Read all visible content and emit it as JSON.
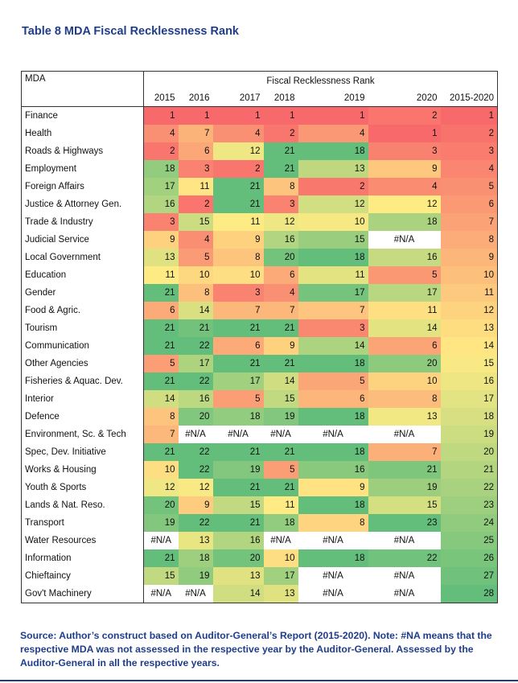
{
  "title": "Table 8 MDA Fiscal Recklessness Rank",
  "table": {
    "first_col_header": "MDA",
    "group_header": "Fiscal Recklessness Rank",
    "columns": [
      "2015",
      "2016",
      "2017",
      "2018",
      "2019",
      "2020",
      "2015-2020"
    ],
    "rows": [
      {
        "mda": "Finance",
        "values": [
          "1",
          "1",
          "1",
          "1",
          "1",
          "2",
          "1"
        ]
      },
      {
        "mda": "Health",
        "values": [
          "4",
          "7",
          "4",
          "2",
          "4",
          "1",
          "2"
        ]
      },
      {
        "mda": "Roads & Highways",
        "values": [
          "2",
          "6",
          "12",
          "21",
          "18",
          "3",
          "3"
        ]
      },
      {
        "mda": "Employment",
        "values": [
          "18",
          "3",
          "2",
          "21",
          "13",
          "9",
          "4"
        ]
      },
      {
        "mda": "Foreign Affairs",
        "values": [
          "17",
          "11",
          "21",
          "8",
          "2",
          "4",
          "5"
        ]
      },
      {
        "mda": "Justice & Attorney Gen.",
        "values": [
          "16",
          "2",
          "21",
          "3",
          "12",
          "12",
          "6"
        ]
      },
      {
        "mda": "Trade & Industry",
        "values": [
          "3",
          "15",
          "11",
          "12",
          "10",
          "18",
          "7"
        ]
      },
      {
        "mda": "Judicial Service",
        "values": [
          "9",
          "4",
          "9",
          "16",
          "15",
          "#N/A",
          "8"
        ]
      },
      {
        "mda": "Local Government",
        "values": [
          "13",
          "5",
          "8",
          "20",
          "18",
          "16",
          "9"
        ]
      },
      {
        "mda": "Education",
        "values": [
          "11",
          "10",
          "10",
          "6",
          "11",
          "5",
          "10"
        ]
      },
      {
        "mda": "Gender",
        "values": [
          "21",
          "8",
          "3",
          "4",
          "17",
          "17",
          "11"
        ]
      },
      {
        "mda": "Food & Agric.",
        "values": [
          "6",
          "14",
          "7",
          "7",
          "7",
          "11",
          "12"
        ]
      },
      {
        "mda": "Tourism",
        "values": [
          "21",
          "21",
          "21",
          "21",
          "3",
          "14",
          "13"
        ]
      },
      {
        "mda": "Communication",
        "values": [
          "21",
          "22",
          "6",
          "9",
          "14",
          "6",
          "14"
        ]
      },
      {
        "mda": "Other Agencies",
        "values": [
          "5",
          "17",
          "21",
          "21",
          "18",
          "20",
          "15"
        ]
      },
      {
        "mda": "Fisheries & Aquac. Dev.",
        "values": [
          "21",
          "22",
          "17",
          "14",
          "5",
          "10",
          "16"
        ]
      },
      {
        "mda": "Interior",
        "values": [
          "14",
          "16",
          "5",
          "15",
          "6",
          "8",
          "17"
        ]
      },
      {
        "mda": "Defence",
        "values": [
          "8",
          "20",
          "18",
          "19",
          "18",
          "13",
          "18"
        ]
      },
      {
        "mda": "Environment, Sc. & Tech",
        "values": [
          "7",
          "#N/A",
          "#N/A",
          "#N/A",
          "#N/A",
          "#N/A",
          "19"
        ]
      },
      {
        "mda": "Spec, Dev. Initiative",
        "values": [
          "21",
          "22",
          "21",
          "21",
          "18",
          "7",
          "20"
        ]
      },
      {
        "mda": "Works & Housing",
        "values": [
          "10",
          "22",
          "19",
          "5",
          "16",
          "21",
          "21"
        ]
      },
      {
        "mda": "Youth & Sports",
        "values": [
          "12",
          "12",
          "21",
          "21",
          "9",
          "19",
          "22"
        ]
      },
      {
        "mda": "Lands & Nat. Reso.",
        "values": [
          "20",
          "9",
          "15",
          "11",
          "18",
          "15",
          "23"
        ]
      },
      {
        "mda": "Transport",
        "values": [
          "19",
          "22",
          "21",
          "18",
          "8",
          "23",
          "24"
        ]
      },
      {
        "mda": "Water Resources",
        "values": [
          "#N/A",
          "13",
          "16",
          "#N/A",
          "#N/A",
          "#N/A",
          "25"
        ]
      },
      {
        "mda": "Information",
        "values": [
          "21",
          "18",
          "20",
          "10",
          "18",
          "22",
          "26"
        ]
      },
      {
        "mda": "Chieftaincy",
        "values": [
          "15",
          "19",
          "13",
          "17",
          "#N/A",
          "#N/A",
          "27"
        ]
      },
      {
        "mda": "Gov't Machinery",
        "values": [
          "#N/A",
          "#N/A",
          "14",
          "13",
          "#N/A",
          "#N/A",
          "28"
        ]
      }
    ]
  },
  "source_note": "Source: Author’s construct based on Auditor-General’s Report (2015-2020). Note: #NA means that the respective MDA was not assessed in the respective year by the Auditor-General. Assessed by the Auditor-General in all the respective years.",
  "colors": {
    "title_blue": "#1f3d8a",
    "rank_best": "#f8696b",
    "rank_mid": "#ffeb84",
    "rank_worst": "#63be7b",
    "na_background": "#ffffff"
  }
}
